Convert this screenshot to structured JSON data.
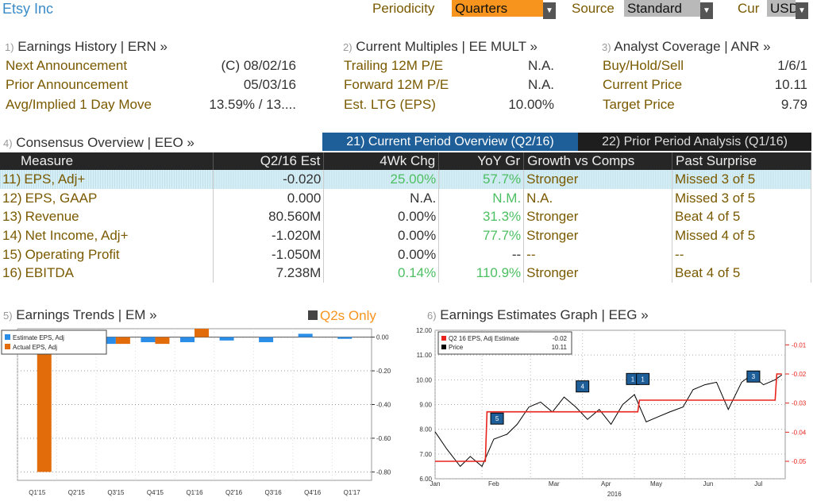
{
  "top": {
    "title": "Etsy Inc",
    "periodicity_label": "Periodicity",
    "periodicity_value": "Quarters",
    "source_label": "Source",
    "source_value": "Standard",
    "cur_label": "Cur",
    "cur_value": "USD"
  },
  "earnings_history": {
    "num": "1)",
    "title": "Earnings History | ERN »",
    "rows": [
      {
        "label": "Next Announcement",
        "value": "(C)  08/02/16"
      },
      {
        "label": "Prior Announcement",
        "value": "05/03/16"
      },
      {
        "label": "Avg/Implied 1 Day Move",
        "value": "13.59% / 13...."
      }
    ]
  },
  "current_multiples": {
    "num": "2)",
    "title": "Current Multiples | EE MULT »",
    "rows": [
      {
        "label": "Trailing 12M P/E",
        "value": "N.A."
      },
      {
        "label": "Forward 12M P/E",
        "value": "N.A."
      },
      {
        "label": "Est. LTG (EPS)",
        "value": "10.00%"
      }
    ]
  },
  "analyst_coverage": {
    "num": "3)",
    "title": "Analyst Coverage | ANR »",
    "rows": [
      {
        "label": "Buy/Hold/Sell",
        "value": "1/6/1"
      },
      {
        "label": "Current Price",
        "value": "10.11"
      },
      {
        "label": "Target Price",
        "value": "9.79"
      }
    ]
  },
  "consensus": {
    "num": "4)",
    "title": "Consensus Overview | EEO »",
    "tab_current": "21) Current Period Overview (Q2/16)",
    "tab_prior": "22) Prior Period Analysis (Q1/16)",
    "headers": [
      "Measure",
      "Q2/16 Est",
      "4Wk Chg",
      "YoY Gr",
      "Growth vs Comps",
      "Past Surprise"
    ],
    "rows": [
      {
        "idx": "11)",
        "measure": "EPS, Adj+",
        "est": "-0.020",
        "chg": "25.00%",
        "yoy": "57.7%",
        "growth": "Stronger",
        "surprise": "Missed 3 of 5"
      },
      {
        "idx": "12)",
        "measure": "EPS, GAAP",
        "est": "0.000",
        "chg": "N.A.",
        "yoy": "N.M.",
        "growth": "N.A.",
        "surprise": "Missed 3 of 5"
      },
      {
        "idx": "13)",
        "measure": "Revenue",
        "est": "80.560M",
        "chg": "0.00%",
        "yoy": "31.3%",
        "growth": "Stronger",
        "surprise": "Beat 4 of 5"
      },
      {
        "idx": "14)",
        "measure": "Net Income, Adj+",
        "est": "-1.020M",
        "chg": "0.00%",
        "yoy": "77.7%",
        "growth": "Stronger",
        "surprise": "Missed 4 of 5"
      },
      {
        "idx": "15)",
        "measure": "Operating Profit",
        "est": "-1.050M",
        "chg": "0.00%",
        "yoy": "--",
        "growth": "--",
        "surprise": "--"
      },
      {
        "idx": "16)",
        "measure": "EBITDA",
        "est": "7.238M",
        "chg": "0.14%",
        "yoy": "110.9%",
        "growth": "Stronger",
        "surprise": "Beat 4 of 5"
      }
    ]
  },
  "trends": {
    "num": "5)",
    "title": "Earnings Trends | EM »",
    "toggle": "Q2s Only"
  },
  "graph": {
    "num": "6)",
    "title": "Earnings Estimates Graph | EEG »"
  },
  "colors": {
    "accent_orange": "#f7941d",
    "estimate_blue": "#2a8ee8",
    "actual_orange": "#e36c0a",
    "growth_green": "#4cbf62",
    "price_line": "#000000",
    "estimate_red": "#e8231c",
    "header_bg": "#262626",
    "active_tab": "#1f5f99"
  },
  "chart_data": [
    {
      "type": "bar",
      "legend": [
        "Estimate EPS, Adj",
        "Actual EPS, Adj"
      ],
      "legend_placement": "top-left",
      "categories": [
        "Q1'15",
        "Q2'15",
        "Q3'15",
        "Q4'15",
        "Q1'16",
        "Q2'16",
        "Q3'16",
        "Q4'16",
        "Q1'17"
      ],
      "series": [
        {
          "name": "Estimate EPS, Adj",
          "values": [
            -0.01,
            -0.04,
            -0.04,
            -0.03,
            -0.03,
            -0.02,
            -0.03,
            0.02,
            -0.01
          ]
        },
        {
          "name": "Actual EPS, Adj",
          "values": [
            -0.8,
            null,
            -0.04,
            -0.04,
            0.05,
            null,
            null,
            null,
            null
          ]
        }
      ],
      "ylim": [
        -0.85,
        0.05
      ],
      "yticks": [
        "0.00",
        "-0.20",
        "-0.40",
        "-0.60",
        "-0.80"
      ],
      "grid": true
    },
    {
      "type": "line",
      "legend": [
        {
          "name": "Q2 16 EPS, Adj Estimate",
          "value": "-0.02"
        },
        {
          "name": "Price",
          "value": "10.11"
        }
      ],
      "legend_placement": "top-left",
      "xticks": [
        "Jan",
        "Feb",
        "Mar",
        "Apr",
        "May",
        "Jun",
        "Jul"
      ],
      "xlabel_year": "2016",
      "left_yticks": [
        "12.00",
        "11.00",
        "10.00",
        "9.00",
        "8.00",
        "7.00",
        "6.00"
      ],
      "right_yticks": [
        "-0.01",
        "-0.02",
        "-0.03",
        "-0.04",
        "-0.05"
      ],
      "left_ylim": [
        6.0,
        12.0
      ],
      "right_ylim": [
        -0.056,
        -0.005
      ],
      "series": [
        {
          "name": "Price",
          "axis": "left",
          "x": [
            "2016-01-04",
            "2016-01-11",
            "2016-01-19",
            "2016-01-25",
            "2016-02-01",
            "2016-02-08",
            "2016-02-16",
            "2016-02-22",
            "2016-02-29",
            "2016-03-07",
            "2016-03-14",
            "2016-03-21",
            "2016-03-28",
            "2016-04-04",
            "2016-04-11",
            "2016-04-18",
            "2016-04-25",
            "2016-05-02",
            "2016-05-09",
            "2016-05-16",
            "2016-05-23",
            "2016-05-31",
            "2016-06-06",
            "2016-06-13",
            "2016-06-20",
            "2016-06-27",
            "2016-07-05",
            "2016-07-11",
            "2016-07-18",
            "2016-07-25",
            "2016-07-29"
          ],
          "y": [
            7.9,
            7.2,
            6.5,
            6.9,
            6.5,
            7.6,
            7.8,
            8.2,
            8.9,
            9.1,
            8.7,
            9.3,
            8.9,
            8.4,
            8.8,
            8.2,
            9.0,
            9.4,
            8.3,
            8.5,
            8.7,
            8.9,
            9.6,
            9.8,
            9.9,
            8.8,
            9.9,
            10.2,
            9.8,
            10.0,
            10.2
          ]
        },
        {
          "name": "Q2 16 EPS, Adj Estimate",
          "axis": "right",
          "x": [
            "2016-01-04",
            "2016-02-03",
            "2016-02-04",
            "2016-05-04",
            "2016-05-05",
            "2016-07-25",
            "2016-07-26",
            "2016-07-29"
          ],
          "y": [
            -0.05,
            -0.05,
            -0.033,
            -0.033,
            -0.029,
            -0.029,
            -0.02,
            -0.02
          ]
        }
      ],
      "markers": [
        "5",
        "4",
        "1",
        "1",
        "3"
      ],
      "grid": true
    }
  ]
}
